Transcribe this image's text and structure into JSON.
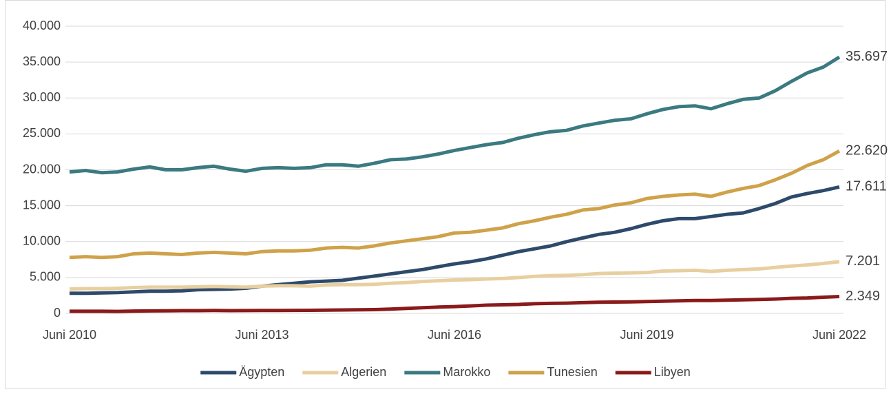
{
  "chart_data": {
    "type": "line",
    "categories": [
      "Juni 2010",
      null,
      null,
      null,
      null,
      null,
      null,
      null,
      null,
      null,
      null,
      null,
      "Juni 2013",
      null,
      null,
      null,
      null,
      null,
      null,
      null,
      null,
      null,
      null,
      null,
      "Juni 2016",
      null,
      null,
      null,
      null,
      null,
      null,
      null,
      null,
      null,
      null,
      null,
      "Juni 2019",
      null,
      null,
      null,
      null,
      null,
      null,
      null,
      null,
      null,
      null,
      null,
      "Juni 2022"
    ],
    "ylim": [
      0,
      40000
    ],
    "yticks": [
      0,
      {
        "value": 5000,
        "label": "5.000"
      },
      {
        "value": 10000,
        "label": "10.000"
      },
      {
        "value": 15000,
        "label": "15.000"
      },
      {
        "value": 20000,
        "label": "20.000"
      },
      {
        "value": 25000,
        "label": "25.000"
      },
      {
        "value": 30000,
        "label": "30.000"
      },
      {
        "value": 35000,
        "label": "35.000"
      },
      {
        "value": 40000,
        "label": "40.000"
      }
    ],
    "grid": true,
    "legend": "bottom",
    "series": [
      {
        "name": "Ägypten",
        "color": "#2e4a6b",
        "values": [
          2800,
          2800,
          2850,
          2900,
          3000,
          3100,
          3100,
          3150,
          3300,
          3350,
          3400,
          3500,
          3800,
          4000,
          4200,
          4400,
          4500,
          4600,
          4900,
          5200,
          5500,
          5800,
          6100,
          6500,
          6900,
          7200,
          7600,
          8100,
          8600,
          9000,
          9400,
          10000,
          10500,
          11000,
          11300,
          11800,
          12400,
          12900,
          13200,
          13200,
          13500,
          13800,
          14000,
          14600,
          15300,
          16200,
          16700,
          17100,
          17611
        ],
        "value_labels": [
          null,
          null,
          null,
          null,
          null,
          null,
          null,
          null,
          null,
          null,
          null,
          null,
          null,
          null,
          null,
          null,
          null,
          null,
          null,
          null,
          null,
          null,
          null,
          null,
          null,
          null,
          null,
          null,
          null,
          null,
          null,
          null,
          null,
          null,
          null,
          null,
          null,
          null,
          null,
          null,
          null,
          null,
          null,
          null,
          null,
          null,
          null,
          null,
          "17.611"
        ]
      },
      {
        "name": "Algerien",
        "color": "#e8cfa0",
        "values": [
          3400,
          3450,
          3450,
          3500,
          3600,
          3650,
          3650,
          3650,
          3700,
          3750,
          3700,
          3650,
          3800,
          3850,
          3850,
          3800,
          3950,
          4000,
          4000,
          4050,
          4200,
          4300,
          4450,
          4550,
          4650,
          4700,
          4800,
          4850,
          5000,
          5150,
          5250,
          5300,
          5400,
          5550,
          5600,
          5650,
          5700,
          5900,
          5950,
          6000,
          5850,
          6000,
          6100,
          6200,
          6400,
          6600,
          6750,
          6950,
          7201
        ],
        "value_labels": [
          null,
          null,
          null,
          null,
          null,
          null,
          null,
          null,
          null,
          null,
          null,
          null,
          null,
          null,
          null,
          null,
          null,
          null,
          null,
          null,
          null,
          null,
          null,
          null,
          null,
          null,
          null,
          null,
          null,
          null,
          null,
          null,
          null,
          null,
          null,
          null,
          null,
          null,
          null,
          null,
          null,
          null,
          null,
          null,
          null,
          null,
          null,
          null,
          "7.201"
        ]
      },
      {
        "name": "Marokko",
        "color": "#3a7a80",
        "values": [
          19700,
          19900,
          19600,
          19700,
          20100,
          20400,
          20000,
          20000,
          20300,
          20500,
          20100,
          19800,
          20200,
          20300,
          20200,
          20300,
          20700,
          20700,
          20500,
          20900,
          21400,
          21500,
          21800,
          22200,
          22700,
          23100,
          23500,
          23800,
          24400,
          24900,
          25300,
          25500,
          26100,
          26500,
          26900,
          27100,
          27800,
          28400,
          28800,
          28900,
          28500,
          29200,
          29800,
          30000,
          31000,
          32300,
          33500,
          34300,
          35697
        ],
        "value_labels": [
          null,
          null,
          null,
          null,
          null,
          null,
          null,
          null,
          null,
          null,
          null,
          null,
          null,
          null,
          null,
          null,
          null,
          null,
          null,
          null,
          null,
          null,
          null,
          null,
          null,
          null,
          null,
          null,
          null,
          null,
          null,
          null,
          null,
          null,
          null,
          null,
          null,
          null,
          null,
          null,
          null,
          null,
          null,
          null,
          null,
          null,
          null,
          null,
          "35.697"
        ]
      },
      {
        "name": "Tunesien",
        "color": "#cfa24a",
        "values": [
          7800,
          7900,
          7800,
          7900,
          8300,
          8400,
          8300,
          8200,
          8400,
          8500,
          8400,
          8300,
          8600,
          8700,
          8700,
          8800,
          9100,
          9200,
          9100,
          9400,
          9800,
          10100,
          10400,
          10700,
          11200,
          11300,
          11600,
          11900,
          12500,
          12900,
          13400,
          13800,
          14400,
          14600,
          15100,
          15400,
          16000,
          16300,
          16500,
          16600,
          16300,
          16900,
          17400,
          17800,
          18600,
          19500,
          20600,
          21400,
          22620
        ],
        "value_labels": [
          null,
          null,
          null,
          null,
          null,
          null,
          null,
          null,
          null,
          null,
          null,
          null,
          null,
          null,
          null,
          null,
          null,
          null,
          null,
          null,
          null,
          null,
          null,
          null,
          null,
          null,
          null,
          null,
          null,
          null,
          null,
          null,
          null,
          null,
          null,
          null,
          null,
          null,
          null,
          null,
          null,
          null,
          null,
          null,
          null,
          null,
          null,
          null,
          "22.620"
        ]
      },
      {
        "name": "Libyen",
        "color": "#8b1a1a",
        "values": [
          300,
          300,
          300,
          280,
          330,
          350,
          360,
          380,
          380,
          400,
          380,
          390,
          400,
          400,
          420,
          430,
          450,
          480,
          500,
          530,
          600,
          700,
          800,
          880,
          950,
          1050,
          1150,
          1200,
          1250,
          1350,
          1400,
          1430,
          1500,
          1550,
          1580,
          1600,
          1650,
          1700,
          1750,
          1800,
          1800,
          1850,
          1900,
          1950,
          2000,
          2100,
          2150,
          2250,
          2349
        ],
        "value_labels": [
          null,
          null,
          null,
          null,
          null,
          null,
          null,
          null,
          null,
          null,
          null,
          null,
          null,
          null,
          null,
          null,
          null,
          null,
          null,
          null,
          null,
          null,
          null,
          null,
          null,
          null,
          null,
          null,
          null,
          null,
          null,
          null,
          null,
          null,
          null,
          null,
          null,
          null,
          null,
          null,
          null,
          null,
          null,
          null,
          null,
          null,
          null,
          null,
          "2.349"
        ]
      }
    ]
  }
}
